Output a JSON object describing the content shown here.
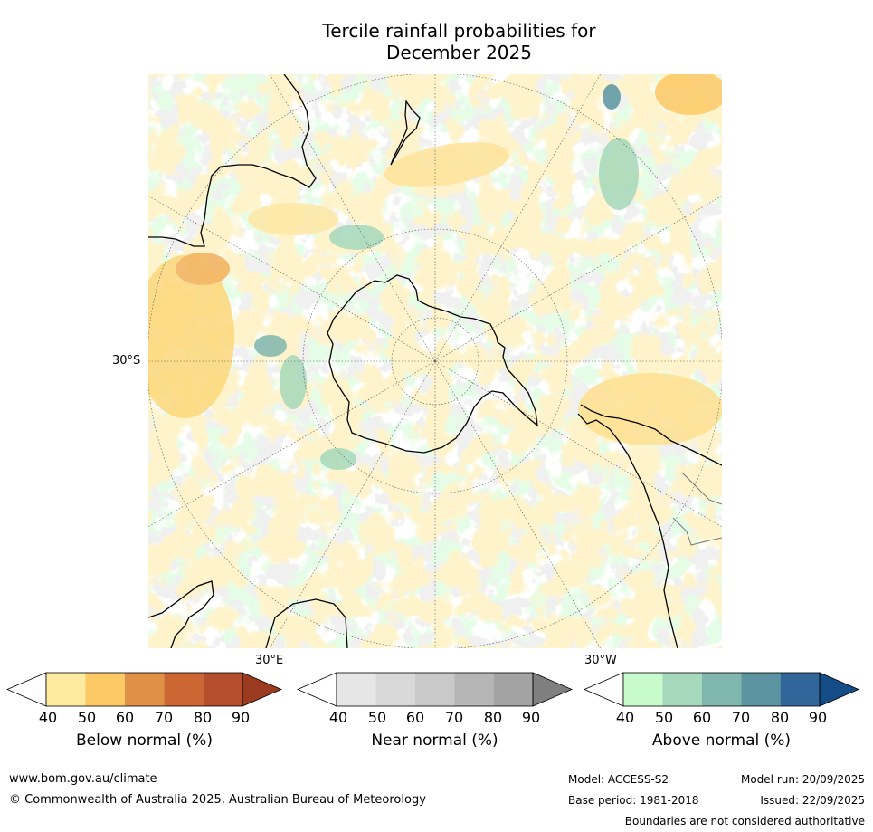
{
  "title": {
    "line1": "Tercile rainfall probabilities for",
    "line2": "December 2025"
  },
  "map": {
    "projection": "south-polar-stereographic",
    "lat_label_30s": "30°S",
    "lon_label_30e": "30°E",
    "lon_label_30w": "30°W"
  },
  "legend": {
    "ticks": [
      "40",
      "50",
      "60",
      "70",
      "80",
      "90"
    ],
    "below": {
      "label": "Below normal (%)",
      "colors": [
        "#ffffff",
        "#feeb9f",
        "#fdc964",
        "#df9146",
        "#cc6633",
        "#b44e2c",
        "#9c3a1f"
      ]
    },
    "near": {
      "label": "Near normal (%)",
      "colors": [
        "#ffffff",
        "#e6e6e6",
        "#d8d8d8",
        "#c9c9c9",
        "#b6b6b6",
        "#a3a3a3",
        "#7f7f7f"
      ]
    },
    "above": {
      "label": "Above normal (%)",
      "colors": [
        "#ffffff",
        "#c8fbcc",
        "#a6d8bb",
        "#7fb6ae",
        "#5b94a0",
        "#31669a",
        "#134c87"
      ]
    }
  },
  "footer": {
    "website": "www.bom.gov.au/climate",
    "copyright": "© Commonwealth of Australia 2025, Australian Bureau of Meteorology",
    "model": "Model: ACCESS-S2",
    "model_run": "Model run: 20/09/2025",
    "base_period": "Base period: 1981-2018",
    "issued": "Issued: 22/09/2025",
    "disclaimer": "Boundaries are not considered authoritative"
  }
}
